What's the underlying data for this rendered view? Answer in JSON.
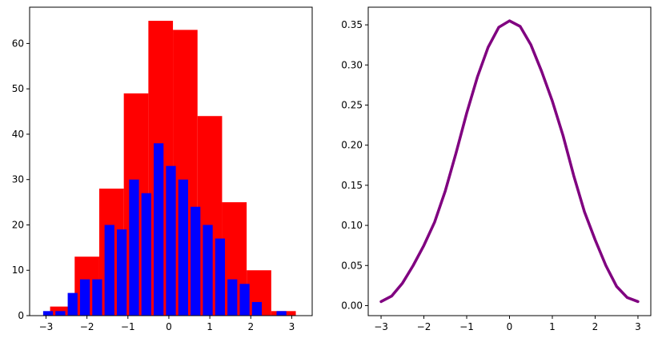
{
  "chart_data": [
    {
      "type": "bar",
      "title": "",
      "xlabel": "",
      "ylabel": "",
      "xlim": [
        -3.4,
        3.5
      ],
      "ylim": [
        0,
        68
      ],
      "xticks": [
        -3,
        -2,
        -1,
        0,
        1,
        2,
        3
      ],
      "yticks": [
        0,
        10,
        20,
        30,
        40,
        50,
        60
      ],
      "xtick_labels": [
        "−3",
        "−2",
        "−1",
        "0",
        "1",
        "2",
        "3"
      ],
      "ytick_labels": [
        "0",
        "10",
        "20",
        "30",
        "40",
        "50",
        "60"
      ],
      "grid": false,
      "series": [
        {
          "color": "#ff0000",
          "bin_edges": [
            -2.9,
            -2.3,
            -1.7,
            -1.1,
            -0.5,
            0.1,
            0.7,
            1.3,
            1.9,
            2.5,
            3.1
          ],
          "values": [
            2,
            13,
            28,
            49,
            65,
            63,
            44,
            25,
            10,
            1
          ]
        },
        {
          "color": "#0000ff",
          "bin_centers": [
            -2.95,
            -2.65,
            -2.35,
            -2.05,
            -1.75,
            -1.45,
            -1.15,
            -0.85,
            -0.55,
            -0.25,
            0.05,
            0.35,
            0.65,
            0.95,
            1.25,
            1.55,
            1.85,
            2.15,
            2.45,
            2.75
          ],
          "bar_width": 0.24,
          "values": [
            1,
            1,
            5,
            8,
            8,
            20,
            19,
            30,
            27,
            38,
            33,
            30,
            24,
            20,
            17,
            8,
            7,
            3,
            0,
            1
          ]
        }
      ]
    },
    {
      "type": "line",
      "title": "",
      "xlabel": "",
      "ylabel": "",
      "xlim": [
        -3.3,
        3.3
      ],
      "ylim": [
        -0.0125,
        0.372
      ],
      "xticks": [
        -3,
        -2,
        -1,
        0,
        1,
        2,
        3
      ],
      "yticks": [
        0.0,
        0.05,
        0.1,
        0.15,
        0.2,
        0.25,
        0.3,
        0.35
      ],
      "xtick_labels": [
        "−3",
        "−2",
        "−1",
        "0",
        "1",
        "2",
        "3"
      ],
      "ytick_labels": [
        "0.00",
        "0.05",
        "0.10",
        "0.15",
        "0.20",
        "0.25",
        "0.30",
        "0.35"
      ],
      "grid": false,
      "series": [
        {
          "color": "#800080",
          "x": [
            -3,
            -2.75,
            -2.5,
            -2.25,
            -2,
            -1.75,
            -1.5,
            -1.25,
            -1,
            -0.75,
            -0.5,
            -0.25,
            0,
            0.25,
            0.5,
            0.75,
            1,
            1.25,
            1.5,
            1.75,
            2,
            2.25,
            2.5,
            2.75,
            3
          ],
          "y": [
            0.005,
            0.012,
            0.028,
            0.05,
            0.075,
            0.104,
            0.143,
            0.19,
            0.24,
            0.285,
            0.322,
            0.347,
            0.355,
            0.348,
            0.325,
            0.292,
            0.255,
            0.212,
            0.162,
            0.117,
            0.082,
            0.05,
            0.024,
            0.01,
            0.005
          ]
        }
      ]
    }
  ]
}
